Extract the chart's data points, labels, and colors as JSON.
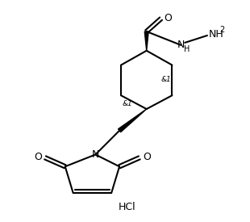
{
  "background_color": "#ffffff",
  "line_color": "#000000",
  "lw": 1.5,
  "figsize": [
    3.1,
    2.75
  ],
  "dpi": 100,
  "o_label": "O",
  "n_label": "N",
  "stereo_label": "&1",
  "hcl_label": "HCl"
}
